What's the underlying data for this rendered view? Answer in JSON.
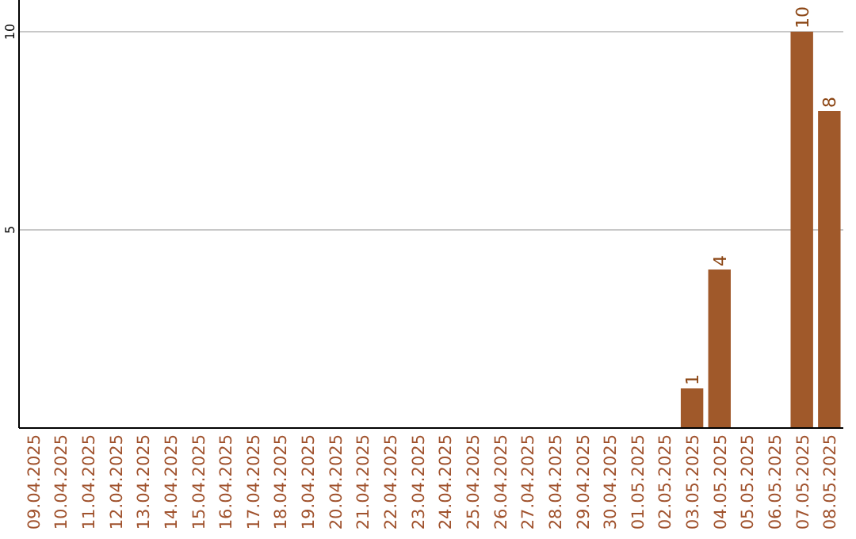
{
  "chart_data": {
    "type": "bar",
    "categories": [
      "09.04.2025",
      "10.04.2025",
      "11.04.2025",
      "12.04.2025",
      "13.04.2025",
      "14.04.2025",
      "15.04.2025",
      "16.04.2025",
      "17.04.2025",
      "18.04.2025",
      "19.04.2025",
      "20.04.2025",
      "21.04.2025",
      "22.04.2025",
      "23.04.2025",
      "24.04.2025",
      "25.04.2025",
      "26.04.2025",
      "27.04.2025",
      "28.04.2025",
      "29.04.2025",
      "30.04.2025",
      "01.05.2025",
      "02.05.2025",
      "03.05.2025",
      "04.05.2025",
      "05.05.2025",
      "06.05.2025",
      "07.05.2025",
      "08.05.2025"
    ],
    "values": [
      0,
      0,
      0,
      0,
      0,
      0,
      0,
      0,
      0,
      0,
      0,
      0,
      0,
      0,
      0,
      0,
      0,
      0,
      0,
      0,
      0,
      0,
      0,
      0,
      1,
      4,
      0,
      0,
      10,
      8
    ],
    "value_labels": [
      null,
      null,
      null,
      null,
      null,
      null,
      null,
      null,
      null,
      null,
      null,
      null,
      null,
      null,
      null,
      null,
      null,
      null,
      null,
      null,
      null,
      null,
      null,
      null,
      "1",
      "4",
      null,
      null,
      "10",
      "8"
    ],
    "color": "#a0592a",
    "ylim": [
      0,
      10
    ],
    "yticks": [
      {
        "value": 0,
        "label": null
      },
      5,
      10
    ],
    "grid": "y"
  }
}
